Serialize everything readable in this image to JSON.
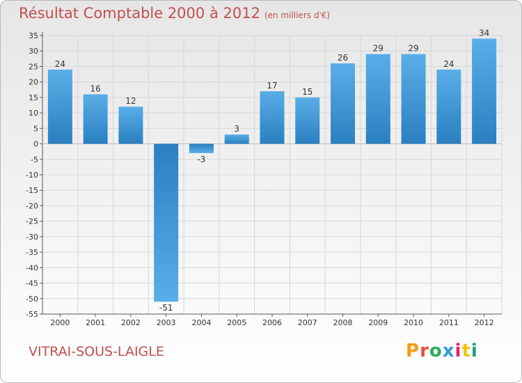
{
  "header": {
    "title": "Résultat Comptable 2000 à 2012",
    "subtitle": "(en milliers d'€)"
  },
  "footer": {
    "commune": "VITRAI-SOUS-LAIGLE",
    "logo_text": "Proxiti"
  },
  "colors": {
    "title": "#c0504d",
    "bar_light": "#5aaee8",
    "bar_dark": "#2a7fc0",
    "grid": "#d6d6d6"
  },
  "chart_data": {
    "type": "bar",
    "title": "Résultat Comptable 2000 à 2012",
    "subtitle": "(en milliers d'€)",
    "categories": [
      "2000",
      "2001",
      "2002",
      "2003",
      "2004",
      "2005",
      "2006",
      "2007",
      "2008",
      "2009",
      "2010",
      "2011",
      "2012"
    ],
    "values": [
      24,
      16,
      12,
      -51,
      -3,
      3,
      17,
      15,
      26,
      29,
      29,
      24,
      34
    ],
    "ylim": [
      -55,
      35
    ],
    "ytick_step": 5,
    "xlabel": "",
    "ylabel": "",
    "grid": true
  }
}
